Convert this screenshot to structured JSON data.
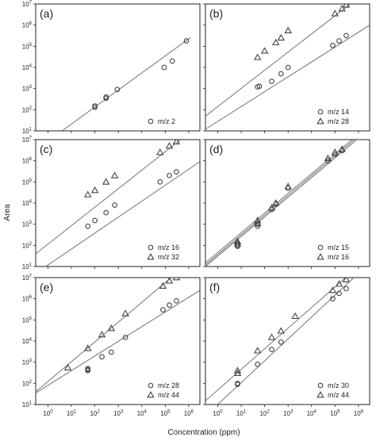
{
  "figure": {
    "xlabel": "Concentration (ppm)",
    "ylabel": "Area"
  },
  "chart_data": [
    {
      "type": "scatter",
      "panel_label": "(a)",
      "xscale": "log",
      "yscale": "log",
      "xlim": [
        0.3,
        3000000
      ],
      "ylim": [
        10,
        10000000
      ],
      "grid": false,
      "legend_position": "bottom-right",
      "series": [
        {
          "name": "m/z 2",
          "marker": "circle",
          "x": [
            100,
            100,
            300,
            300,
            900,
            90000,
            200000,
            800000
          ],
          "y": [
            130,
            150,
            350,
            400,
            900,
            10000,
            20000,
            180000
          ]
        }
      ],
      "fit_lines": [
        {
          "x": [
            4,
            1200000
          ],
          "y": [
            10,
            260000
          ]
        }
      ]
    },
    {
      "type": "scatter",
      "panel_label": "(b)",
      "xscale": "log",
      "yscale": "log",
      "xlim": [
        0.3,
        3000000
      ],
      "ylim": [
        10,
        10000000
      ],
      "grid": false,
      "legend_position": "bottom-right",
      "series": [
        {
          "name": "m/z 14",
          "marker": "circle",
          "x": [
            50,
            60,
            200,
            500,
            1000,
            80000,
            150000,
            300000
          ],
          "y": [
            1200,
            1300,
            2200,
            5000,
            10000,
            110000,
            180000,
            320000
          ]
        },
        {
          "name": "m/z 28",
          "marker": "triangle",
          "x": [
            50,
            100,
            300,
            500,
            1000,
            100000,
            200000,
            300000
          ],
          "y": [
            30000,
            60000,
            150000,
            250000,
            550000,
            3500000,
            6000000,
            9000000
          ]
        }
      ],
      "fit_lines": [
        {
          "x": [
            0.3,
            3000000
          ],
          "y": [
            12,
            1000000
          ]
        },
        {
          "x": [
            0.3,
            1000000
          ],
          "y": [
            50,
            20000000
          ]
        }
      ]
    },
    {
      "type": "scatter",
      "panel_label": "(c)",
      "xscale": "log",
      "yscale": "log",
      "xlim": [
        0.3,
        3000000
      ],
      "ylim": [
        10,
        10000000
      ],
      "grid": false,
      "legend_position": "bottom-right",
      "series": [
        {
          "name": "m/z 16",
          "marker": "circle",
          "x": [
            50,
            100,
            300,
            700,
            60000,
            150000,
            300000
          ],
          "y": [
            800,
            1500,
            3500,
            8000,
            100000,
            200000,
            300000
          ]
        },
        {
          "name": "m/z 32",
          "marker": "triangle",
          "x": [
            50,
            100,
            300,
            700,
            60000,
            150000,
            300000
          ],
          "y": [
            25000,
            40000,
            100000,
            200000,
            2500000,
            5000000,
            8000000
          ]
        }
      ],
      "fit_lines": [
        {
          "x": [
            0.8,
            3000000
          ],
          "y": [
            10,
            900000
          ]
        },
        {
          "x": [
            0.3,
            1000000
          ],
          "y": [
            40,
            20000000
          ]
        }
      ]
    },
    {
      "type": "scatter",
      "panel_label": "(d)",
      "xscale": "log",
      "yscale": "log",
      "xlim": [
        0.3,
        3000000
      ],
      "ylim": [
        10,
        10000000
      ],
      "grid": false,
      "legend_position": "bottom-right",
      "series": [
        {
          "name": "m/z 15",
          "marker": "circle",
          "x": [
            7,
            7,
            7,
            50,
            50,
            200,
            300,
            1000,
            50000,
            100000,
            200000
          ],
          "y": [
            90,
            100,
            120,
            800,
            1000,
            5000,
            9000,
            50000,
            1000000,
            2000000,
            3000000
          ]
        },
        {
          "name": "m/z 16",
          "marker": "triangle",
          "x": [
            7,
            7,
            50,
            50,
            200,
            300,
            1000,
            50000,
            100000,
            200000
          ],
          "y": [
            120,
            150,
            1100,
            1500,
            6000,
            10000,
            60000,
            1300000,
            2500000,
            3500000
          ]
        }
      ],
      "fit_lines": [
        {
          "x": [
            0.3,
            3000000
          ],
          "y": [
            15,
            50000000
          ]
        },
        {
          "x": [
            0.3,
            3000000
          ],
          "y": [
            12,
            40000000
          ]
        },
        {
          "x": [
            0.3,
            3000000
          ],
          "y": [
            10,
            32000000
          ]
        }
      ]
    },
    {
      "type": "scatter",
      "panel_label": "(e)",
      "xscale": "log",
      "yscale": "log",
      "xlim": [
        0.3,
        3000000
      ],
      "ylim": [
        10,
        10000000
      ],
      "grid": false,
      "legend_position": "bottom-right",
      "series": [
        {
          "name": "m/z 28",
          "marker": "circle",
          "x": [
            50,
            50,
            50,
            200,
            500,
            2000,
            80000,
            150000,
            300000
          ],
          "y": [
            400,
            450,
            500,
            1800,
            3000,
            15000,
            300000,
            500000,
            800000
          ]
        },
        {
          "name": "m/z 44",
          "marker": "triangle",
          "x": [
            7,
            50,
            200,
            500,
            2000,
            80000,
            150000,
            300000
          ],
          "y": [
            550,
            4500,
            20000,
            40000,
            200000,
            4000000,
            7000000,
            10000000
          ]
        }
      ],
      "fit_lines": [
        {
          "x": [
            0.3,
            3000000
          ],
          "y": [
            35,
            2500000
          ]
        },
        {
          "x": [
            0.3,
            1000000
          ],
          "y": [
            40,
            50000000
          ]
        }
      ]
    },
    {
      "type": "scatter",
      "panel_label": "(f)",
      "xscale": "log",
      "yscale": "log",
      "xlim": [
        0.3,
        3000000
      ],
      "ylim": [
        10,
        10000000
      ],
      "grid": false,
      "legend_position": "bottom-right",
      "series": [
        {
          "name": "m/z 30",
          "marker": "circle",
          "x": [
            7,
            7,
            50,
            200,
            500,
            80000,
            150000,
            300000
          ],
          "y": [
            90,
            100,
            800,
            4000,
            9000,
            1000000,
            1800000,
            3000000
          ]
        },
        {
          "name": "m/z 44",
          "marker": "triangle",
          "x": [
            7,
            7,
            50,
            200,
            500,
            2000,
            80000,
            150000,
            300000
          ],
          "y": [
            300,
            400,
            3500,
            15000,
            30000,
            150000,
            2500000,
            5000000,
            8000000
          ]
        }
      ],
      "fit_lines": [
        {
          "x": [
            1,
            3000000
          ],
          "y": [
            10,
            50000000
          ]
        },
        {
          "x": [
            0.3,
            3000000
          ],
          "y": [
            15,
            100000000
          ]
        }
      ]
    }
  ]
}
